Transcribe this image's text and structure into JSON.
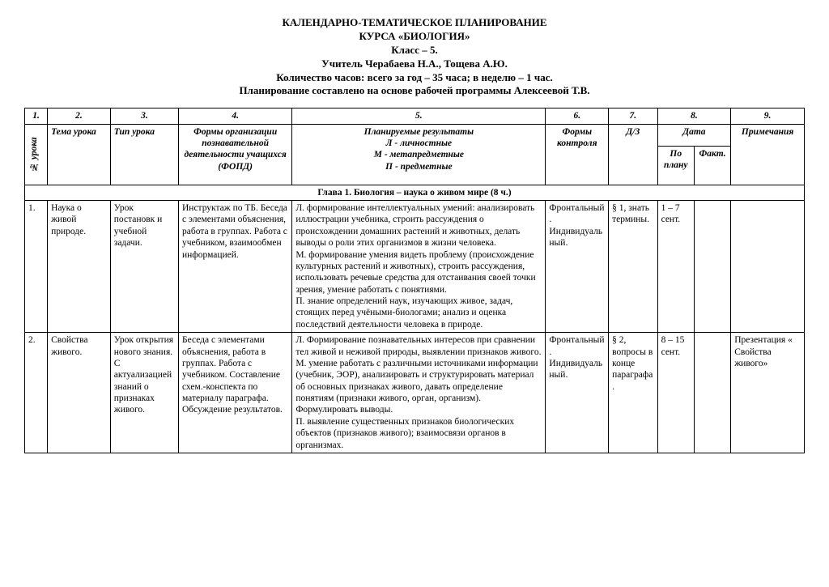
{
  "header": {
    "line1": "КАЛЕНДАРНО-ТЕМАТИЧЕСКОЕ ПЛАНИРОВАНИЕ",
    "line2": "КУРСА «БИОЛОГИЯ»",
    "line3": "Класс – 5.",
    "line4": "Учитель Черабаева Н.А., Тощева А.Ю.",
    "line5": "Количество часов: всего за год – 35 часа; в неделю – 1 час.",
    "line6": "Планирование составлено на основе рабочей программы Алексеевой Т.В."
  },
  "columns": {
    "n1": "1.",
    "n2": "2.",
    "n3": "3.",
    "n4": "4.",
    "n5": "5.",
    "n6": "6.",
    "n7": "7.",
    "n8": "8.",
    "n9": "9.",
    "h1": "№ урока",
    "h2": "Тема урока",
    "h3": "Тип урока",
    "h4": "Формы организации познавательной деятельности учащихся (ФОПД)",
    "h5a": "Планируемые результаты",
    "h5b": "Л - личностные",
    "h5c": "М - метапредметные",
    "h5d": "П - предметные",
    "h6": "Формы контроля",
    "h7": "Д/З",
    "h8": "Дата",
    "h8a": "По плану",
    "h8b": "Факт.",
    "h9": "Примечания"
  },
  "chapter": "Глава 1. Биология – наука о живом мире (8 ч.)",
  "rows": [
    {
      "num": "1.",
      "topic": "Наука о живой природе.",
      "type": "Урок постановк и учебной задачи.",
      "forms": "Инструктаж по ТБ. Беседа с элементами объяснения, работа в группах. Работа с учебником, взаимообмен информацией.",
      "results": "Л. формирование интеллектуальных умений: анализировать иллюстрации учебника, строить рассуждения о происхождении домашних растений и животных, делать выводы о роли этих организмов в жизни человека.\nМ. формирование умения видеть проблему (происхождение культурных растений и животных), строить рассуждения, использовать речевые средства для отстаивания своей точки зрения, умение работать с понятиями.\nП. знание определений наук, изучающих живое, задач, стоящих перед учёными-биологами; анализ и оценка последствий деятельности человека в природе.",
      "control": "Фронтальный. Индивидуальный.",
      "hw": "§ 1, знать термины.",
      "date_plan": "1 – 7 сент.",
      "date_fact": "",
      "notes": ""
    },
    {
      "num": "2.",
      "topic": "Свойства живого.",
      "type": "Урок открытия нового знания. С актуализацией знаний о признаках живого.",
      "forms": "Беседа с элементами объяснения, работа в группах. Работа с учебником. Составление схем.-конспекта по материалу параграфа. Обсуждение результатов.",
      "results": "Л. Формирование познавательных интересов при сравнении тел живой и неживой природы, выявлении признаков живого.\nМ. умение работать с различными источниками информации (учебник, ЭОР), анализировать и структурировать материал об основных признаках живого, давать определение понятиям (признаки живого, орган, организм). Формулировать выводы.\nП. выявление существенных признаков биологических объектов (признаков живого); взаимосвязи органов в организмах.",
      "control": "Фронтальный. Индивидуальный.",
      "hw": "§ 2, вопросы в конце параграфа.",
      "date_plan": "8 – 15 сент.",
      "date_fact": "",
      "notes": "Презентация « Свойства живого»"
    }
  ]
}
